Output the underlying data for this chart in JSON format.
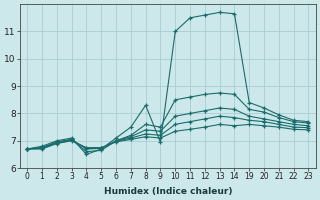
{
  "xlabel": "Humidex (Indice chaleur)",
  "ylabel": "",
  "background_color": "#cce8eb",
  "grid_color": "#aacdd2",
  "line_color": "#1a6b6b",
  "xlim": [
    -0.5,
    19.5
  ],
  "ylim": [
    6.0,
    12.0
  ],
  "xtick_positions": [
    0,
    1,
    2,
    3,
    4,
    5,
    6,
    7,
    8,
    9,
    10,
    11,
    12,
    13,
    14,
    15,
    16,
    17,
    18,
    19
  ],
  "xtick_labels": [
    "0",
    "1",
    "2",
    "3",
    "4",
    "5",
    "6",
    "7",
    "8",
    "9",
    "10",
    "11",
    "12",
    "13",
    "14",
    "19",
    "20",
    "21",
    "22",
    "23"
  ],
  "yticks": [
    6,
    7,
    8,
    9,
    10,
    11
  ],
  "series": [
    {
      "x": [
        0,
        1,
        2,
        3,
        4,
        5,
        6,
        7,
        8,
        9,
        10,
        11,
        12,
        13,
        14,
        15,
        16,
        17,
        18,
        19
      ],
      "y": [
        6.7,
        6.8,
        7.0,
        7.1,
        6.5,
        6.7,
        7.1,
        7.5,
        8.3,
        6.95,
        11.0,
        11.5,
        11.6,
        11.7,
        11.65,
        8.4,
        8.2,
        7.95,
        7.75,
        7.7
      ]
    },
    {
      "x": [
        0,
        1,
        2,
        3,
        4,
        5,
        6,
        7,
        8,
        9,
        10,
        11,
        12,
        13,
        14,
        15,
        16,
        17,
        18,
        19
      ],
      "y": [
        6.7,
        6.75,
        6.95,
        7.05,
        6.6,
        6.65,
        7.0,
        7.2,
        7.6,
        7.5,
        8.5,
        8.6,
        8.7,
        8.75,
        8.7,
        8.15,
        8.05,
        7.85,
        7.7,
        7.65
      ]
    },
    {
      "x": [
        0,
        1,
        2,
        3,
        4,
        5,
        6,
        7,
        8,
        9,
        10,
        11,
        12,
        13,
        14,
        15,
        16,
        17,
        18,
        19
      ],
      "y": [
        6.7,
        6.75,
        6.95,
        7.05,
        6.7,
        6.72,
        7.0,
        7.15,
        7.4,
        7.35,
        7.9,
        8.0,
        8.1,
        8.2,
        8.15,
        7.9,
        7.8,
        7.7,
        7.6,
        7.55
      ]
    },
    {
      "x": [
        0,
        1,
        2,
        3,
        4,
        5,
        6,
        7,
        8,
        9,
        10,
        11,
        12,
        13,
        14,
        15,
        16,
        17,
        18,
        19
      ],
      "y": [
        6.7,
        6.72,
        6.92,
        7.02,
        6.72,
        6.73,
        6.98,
        7.1,
        7.25,
        7.2,
        7.6,
        7.7,
        7.8,
        7.9,
        7.85,
        7.75,
        7.7,
        7.6,
        7.5,
        7.48
      ]
    },
    {
      "x": [
        0,
        1,
        2,
        3,
        4,
        5,
        6,
        7,
        8,
        9,
        10,
        11,
        12,
        13,
        14,
        15,
        16,
        17,
        18,
        19
      ],
      "y": [
        6.7,
        6.7,
        6.9,
        7.0,
        6.75,
        6.75,
        6.96,
        7.05,
        7.15,
        7.1,
        7.35,
        7.42,
        7.5,
        7.6,
        7.55,
        7.6,
        7.55,
        7.5,
        7.42,
        7.4
      ]
    }
  ]
}
